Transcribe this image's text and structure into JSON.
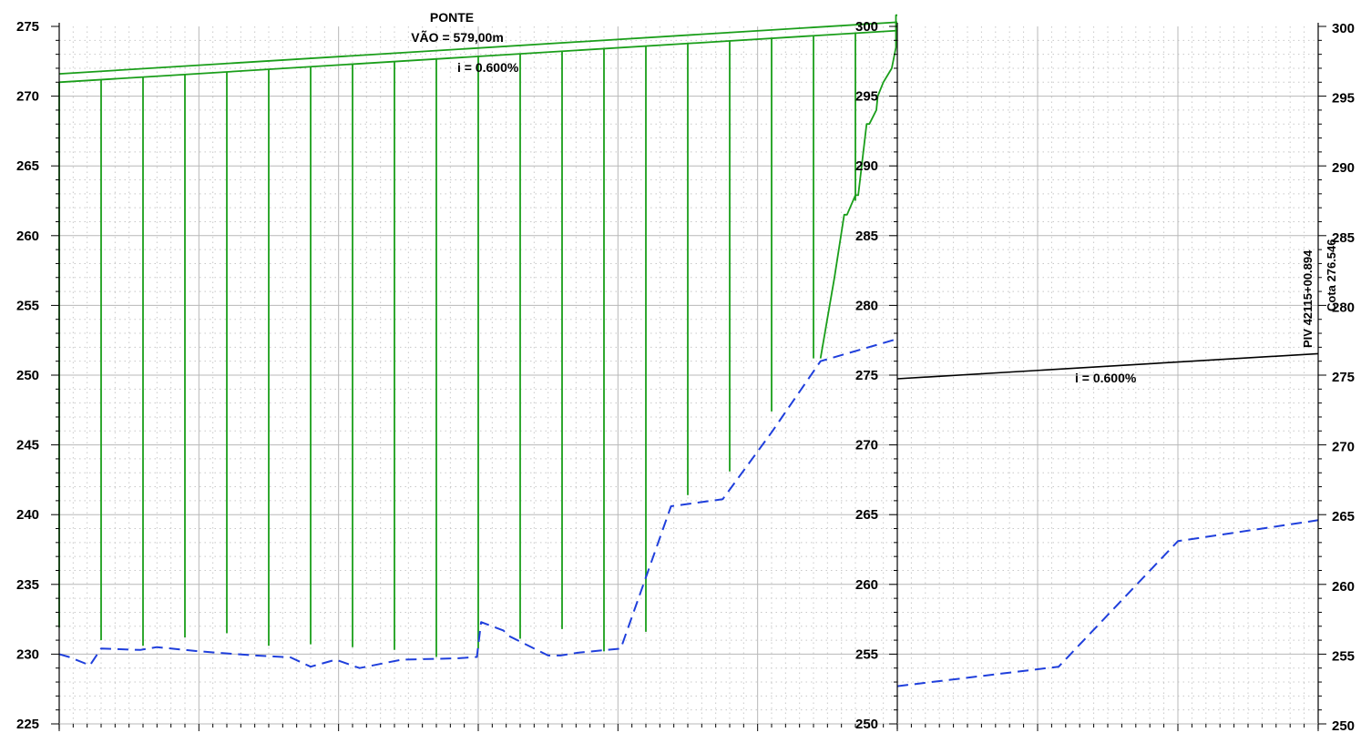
{
  "colors": {
    "grid_major": "#b8b8b8",
    "grid_minor": "#c8c8c8",
    "bridge": "#1a9e1a",
    "terrain": "#1f3fdc",
    "grade": "#000000",
    "axis": "#000000"
  },
  "chart_data": [
    {
      "type": "line",
      "title": "",
      "xlabel": "",
      "ylabel": "",
      "ylim": [
        225,
        275
      ],
      "yticks": [
        "225",
        "230",
        "235",
        "240",
        "245",
        "250",
        "255",
        "260",
        "265",
        "270",
        "275"
      ],
      "grid": true,
      "annotations": {
        "bridge_name": "PONTE",
        "span": "VÃO = 579,00m",
        "grade": "i = 0.600%"
      },
      "series": [
        {
          "kind": "deck-top",
          "x": [
            0,
            600
          ],
          "y": [
            271.6,
            275.3
          ]
        },
        {
          "kind": "deck-bottom",
          "x": [
            0,
            600
          ],
          "y": [
            271.0,
            274.7
          ]
        },
        {
          "kind": "piers",
          "x": [
            0,
            30,
            60,
            90,
            120,
            150,
            180,
            210,
            240,
            270,
            300,
            330,
            360,
            390,
            420,
            450,
            480,
            510,
            540,
            570
          ],
          "y_bottom": [
            231.9,
            231.0,
            230.6,
            231.2,
            231.5,
            230.6,
            230.7,
            230.5,
            230.3,
            229.8,
            230.4,
            231.1,
            231.8,
            230.2,
            231.6,
            241.4,
            243.1,
            247.4,
            251.2,
            262.5
          ]
        },
        {
          "kind": "abutment",
          "x": [
            545,
            555,
            562,
            564,
            570,
            572,
            578,
            580,
            585,
            586,
            590,
            596,
            599,
            599,
            600
          ],
          "y": [
            251.2,
            257.0,
            261.5,
            261.5,
            262.9,
            262.9,
            268.0,
            268.0,
            269.0,
            270.0,
            271.0,
            272.0,
            273.5,
            275.8,
            275.8
          ]
        },
        {
          "kind": "terrain",
          "x": [
            0,
            7,
            22,
            30,
            58,
            70,
            100,
            140,
            160,
            165,
            180,
            198,
            215,
            245,
            285,
            299,
            302,
            318,
            322,
            350,
            359,
            371,
            402,
            438,
            475,
            510,
            545,
            600
          ],
          "y": [
            230.0,
            229.8,
            229.2,
            230.4,
            230.3,
            230.5,
            230.2,
            229.9,
            229.8,
            229.8,
            229.1,
            229.6,
            229.0,
            229.6,
            229.7,
            229.8,
            232.3,
            231.7,
            231.3,
            229.9,
            229.9,
            230.1,
            230.4,
            240.6,
            241.1,
            245.9,
            251.0,
            252.6
          ]
        }
      ]
    },
    {
      "type": "line",
      "title": "",
      "xlabel": "",
      "ylabel": "",
      "ylim": [
        250,
        300
      ],
      "yticks": [
        "250",
        "255",
        "260",
        "265",
        "270",
        "275",
        "280",
        "285",
        "290",
        "295",
        "300"
      ],
      "grid": true,
      "annotations": {
        "grade": "i = 0.600%",
        "piv": "PIV 42115+00.894",
        "cota": "Cota 276.546"
      },
      "series": [
        {
          "kind": "grade-line",
          "x": [
            0,
            300
          ],
          "y": [
            274.74,
            276.54
          ]
        },
        {
          "kind": "terrain",
          "x": [
            0,
            115,
            200,
            300
          ],
          "y": [
            252.7,
            254.1,
            263.1,
            264.6
          ]
        }
      ]
    }
  ]
}
